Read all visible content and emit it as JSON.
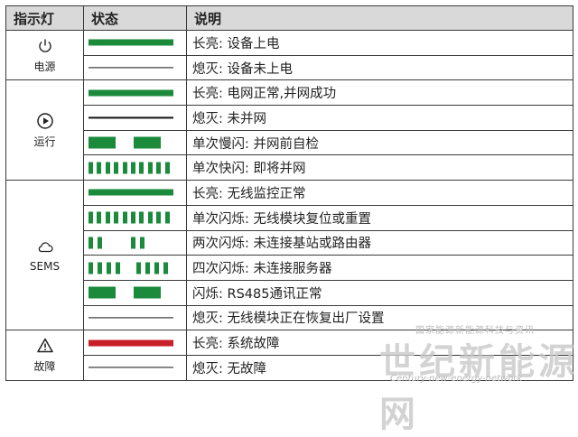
{
  "header": {
    "col_indicator": "指示灯",
    "col_state": "状态",
    "col_desc": "说明"
  },
  "colors": {
    "green": "#1b8a3b",
    "red": "#c8202a",
    "off": "#111111",
    "header_bg": "#d9d9d9"
  },
  "groups": [
    {
      "name": "电源",
      "icon": "power-icon",
      "rows": [
        {
          "pattern": "solid",
          "color": "green",
          "text": "长亮: 设备上电"
        },
        {
          "pattern": "off",
          "text": "熄灭: 设备未上电"
        }
      ]
    },
    {
      "name": "运行",
      "icon": "play-icon",
      "rows": [
        {
          "pattern": "solid",
          "color": "green",
          "text": "长亮: 电网正常,并网成功"
        },
        {
          "pattern": "off",
          "text": "熄灭: 未并网"
        },
        {
          "pattern": "slow-blink",
          "color": "green",
          "text": "单次慢闪: 并网前自检"
        },
        {
          "pattern": "fast-blink",
          "color": "green",
          "text": "单次快闪: 即将并网"
        }
      ]
    },
    {
      "name": "SEMS",
      "icon": "cloud-icon",
      "rows": [
        {
          "pattern": "solid",
          "color": "green",
          "text": "长亮: 无线监控正常"
        },
        {
          "pattern": "fast-blink",
          "color": "green",
          "text": "单次闪烁: 无线模块复位或重置"
        },
        {
          "pattern": "double-blink",
          "color": "green",
          "text": "两次闪烁: 未连接基站或路由器"
        },
        {
          "pattern": "quad-blink",
          "color": "green",
          "text": "四次闪烁: 未连接服务器"
        },
        {
          "pattern": "slow-blink",
          "color": "green",
          "text": "闪烁: RS485通讯正常"
        },
        {
          "pattern": "off",
          "text": "熄灭: 无线模块正在恢复出厂设置"
        }
      ]
    },
    {
      "name": "故障",
      "icon": "warning-icon",
      "rows": [
        {
          "pattern": "solid",
          "color": "red",
          "text": "长亮: 系统故障"
        },
        {
          "pattern": "off",
          "text": "熄灭: 无故障"
        }
      ]
    }
  ],
  "watermark": {
    "small": "国家能源新能源科技与资讯",
    "big": "世纪新能源网",
    "url": "Century-new-energy-network"
  }
}
